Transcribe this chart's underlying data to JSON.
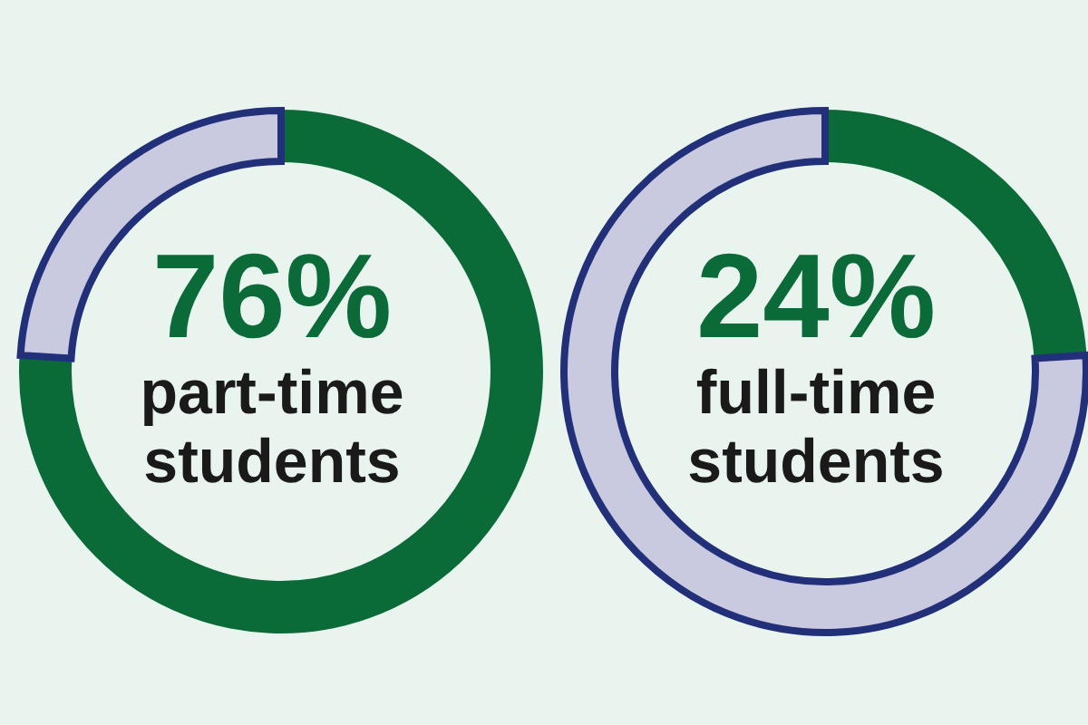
{
  "chart_data": [
    {
      "type": "donut",
      "categories": [
        "part-time students",
        null
      ],
      "values": [
        76,
        24
      ],
      "value_labels": [
        "76%",
        null
      ],
      "colors": [
        "#0b6b38",
        "#c9c9e0"
      ]
    },
    {
      "type": "donut",
      "categories": [
        "full-time students",
        null
      ],
      "values": [
        24,
        76
      ],
      "value_labels": [
        "24%",
        null
      ],
      "colors": [
        "#0b6b38",
        "#c9c9e0"
      ]
    }
  ]
}
